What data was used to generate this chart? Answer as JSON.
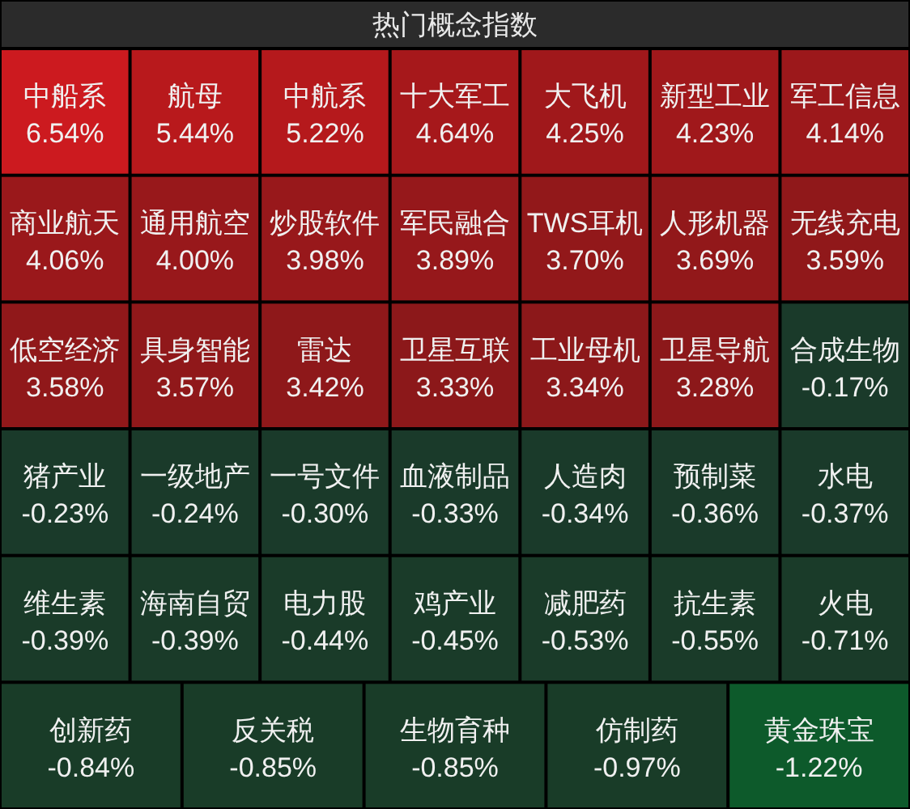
{
  "chart_data": {
    "type": "other",
    "title": "热门概念指数",
    "categories": [
      "中船系",
      "航母",
      "中航系",
      "十大军工",
      "大飞机",
      "新型工业",
      "军工信息",
      "商业航天",
      "通用航空",
      "炒股软件",
      "军民融合",
      "TWS耳机",
      "人形机器",
      "无线充电",
      "低空经济",
      "具身智能",
      "雷达",
      "卫星互联",
      "工业母机",
      "卫星导航",
      "合成生物",
      "猪产业",
      "一级地产",
      "一号文件",
      "血液制品",
      "人造肉",
      "预制菜",
      "水电",
      "维生素",
      "海南自贸",
      "电力股",
      "鸡产业",
      "减肥药",
      "抗生素",
      "火电",
      "创新药",
      "反关税",
      "生物育种",
      "仿制药",
      "黄金珠宝"
    ],
    "values": [
      6.54,
      5.44,
      5.22,
      4.64,
      4.25,
      4.23,
      4.14,
      4.06,
      4.0,
      3.98,
      3.89,
      3.7,
      3.69,
      3.59,
      3.58,
      3.57,
      3.42,
      3.33,
      3.34,
      3.28,
      -0.17,
      -0.23,
      -0.24,
      -0.3,
      -0.33,
      -0.34,
      -0.36,
      -0.37,
      -0.39,
      -0.39,
      -0.44,
      -0.45,
      -0.53,
      -0.55,
      -0.71,
      -0.84,
      -0.85,
      -0.85,
      -0.97,
      -1.22
    ],
    "value_labels": [
      "6.54%",
      "5.44%",
      "5.22%",
      "4.64%",
      "4.25%",
      "4.23%",
      "4.14%",
      "4.06%",
      "4.00%",
      "3.98%",
      "3.89%",
      "3.70%",
      "3.69%",
      "3.59%",
      "3.58%",
      "3.57%",
      "3.42%",
      "3.33%",
      "3.34%",
      "3.28%",
      "-0.17%",
      "-0.23%",
      "-0.24%",
      "-0.30%",
      "-0.33%",
      "-0.34%",
      "-0.36%",
      "-0.37%",
      "-0.39%",
      "-0.39%",
      "-0.44%",
      "-0.45%",
      "-0.53%",
      "-0.55%",
      "-0.71%",
      "-0.84%",
      "-0.85%",
      "-0.85%",
      "-0.97%",
      "-1.22%"
    ],
    "colors": [
      "#cc1a1f",
      "#b8191c",
      "#b5191c",
      "#a6181b",
      "#a0181b",
      "#a0181b",
      "#9c181b",
      "#9a181b",
      "#98181b",
      "#98181b",
      "#96181b",
      "#92181a",
      "#92181a",
      "#90181a",
      "#90181a",
      "#90181a",
      "#8e181a",
      "#8c181a",
      "#8c181a",
      "#8c181a",
      "#1a3a2a",
      "#1a3a2a",
      "#1a3a2a",
      "#1a3a2a",
      "#1a3a2a",
      "#1a3a2a",
      "#1a3a2a",
      "#1a3a2a",
      "#1a3b29",
      "#1a3b29",
      "#1a3b29",
      "#1a3b29",
      "#1a3b29",
      "#1a3b29",
      "#1a3b29",
      "#193c28",
      "#193c28",
      "#193c28",
      "#193c28",
      "#0d5a2b"
    ]
  }
}
